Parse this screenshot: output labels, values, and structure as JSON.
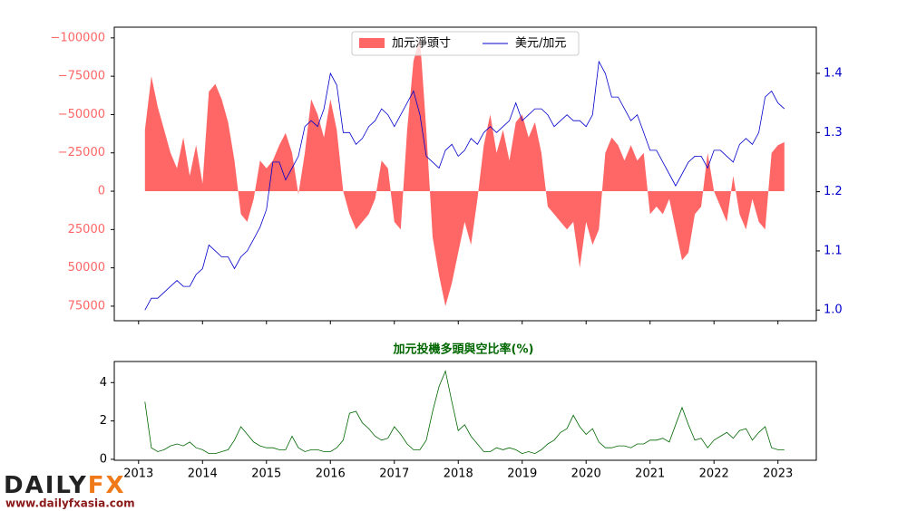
{
  "chart_data": [
    {
      "type": "area",
      "x": [
        2013.1,
        2013.2,
        2013.3,
        2013.4,
        2013.5,
        2013.6,
        2013.7,
        2013.8,
        2013.9,
        2014.0,
        2014.1,
        2014.2,
        2014.3,
        2014.4,
        2014.5,
        2014.6,
        2014.7,
        2014.8,
        2014.9,
        2015.0,
        2015.1,
        2015.2,
        2015.3,
        2015.4,
        2015.5,
        2015.6,
        2015.7,
        2015.8,
        2015.9,
        2016.0,
        2016.1,
        2016.2,
        2016.3,
        2016.4,
        2016.5,
        2016.6,
        2016.7,
        2016.8,
        2016.9,
        2017.0,
        2017.1,
        2017.2,
        2017.3,
        2017.4,
        2017.5,
        2017.6,
        2017.7,
        2017.8,
        2017.9,
        2018.0,
        2018.1,
        2018.2,
        2018.3,
        2018.4,
        2018.5,
        2018.6,
        2018.7,
        2018.8,
        2018.9,
        2019.0,
        2019.1,
        2019.2,
        2019.3,
        2019.4,
        2019.5,
        2019.6,
        2019.7,
        2019.8,
        2019.9,
        2020.0,
        2020.1,
        2020.2,
        2020.3,
        2020.4,
        2020.5,
        2020.6,
        2020.7,
        2020.8,
        2020.9,
        2021.0,
        2021.1,
        2021.2,
        2021.3,
        2021.4,
        2021.5,
        2021.6,
        2021.7,
        2021.8,
        2021.9,
        2022.0,
        2022.1,
        2022.2,
        2022.3,
        2022.4,
        2022.5,
        2022.6,
        2022.7,
        2022.8,
        2022.9,
        2023.0,
        2023.1
      ],
      "series": [
        {
          "name": "加元淨頭寸",
          "color": "#ff6666",
          "values": [
            -40000,
            -75000,
            -55000,
            -40000,
            -25000,
            -15000,
            -35000,
            -10000,
            -30000,
            -5000,
            -65000,
            -70000,
            -60000,
            -45000,
            -20000,
            15000,
            20000,
            5000,
            -20000,
            -15000,
            -20000,
            -30000,
            -38000,
            -25000,
            2000,
            -25000,
            -60000,
            -50000,
            -35000,
            -60000,
            -40000,
            0,
            15000,
            25000,
            20000,
            15000,
            5000,
            -20000,
            -15000,
            20000,
            25000,
            -40000,
            -85000,
            -100000,
            -40000,
            30000,
            55000,
            75000,
            60000,
            40000,
            20000,
            35000,
            5000,
            -30000,
            -50000,
            -25000,
            -40000,
            -20000,
            -45000,
            -50000,
            -35000,
            -45000,
            -25000,
            10000,
            15000,
            20000,
            25000,
            20000,
            50000,
            20000,
            35000,
            25000,
            -25000,
            -35000,
            -30000,
            -20000,
            -30000,
            -20000,
            -25000,
            15000,
            10000,
            15000,
            5000,
            25000,
            45000,
            40000,
            15000,
            10000,
            -25000,
            0,
            10000,
            20000,
            -10000,
            15000,
            25000,
            5000,
            20000,
            25000,
            -25000,
            -30000,
            -32000
          ]
        },
        {
          "name": "美元/加元",
          "color": "#0000cc",
          "axis": "y2",
          "values": [
            1.0,
            1.02,
            1.02,
            1.03,
            1.04,
            1.05,
            1.04,
            1.04,
            1.06,
            1.07,
            1.11,
            1.1,
            1.09,
            1.09,
            1.07,
            1.09,
            1.1,
            1.12,
            1.14,
            1.17,
            1.25,
            1.25,
            1.22,
            1.24,
            1.26,
            1.31,
            1.32,
            1.31,
            1.34,
            1.4,
            1.38,
            1.3,
            1.3,
            1.28,
            1.29,
            1.31,
            1.32,
            1.34,
            1.33,
            1.31,
            1.33,
            1.35,
            1.37,
            1.33,
            1.26,
            1.25,
            1.24,
            1.27,
            1.28,
            1.26,
            1.27,
            1.29,
            1.28,
            1.3,
            1.31,
            1.3,
            1.31,
            1.32,
            1.35,
            1.32,
            1.33,
            1.34,
            1.34,
            1.33,
            1.31,
            1.32,
            1.33,
            1.32,
            1.32,
            1.31,
            1.33,
            1.42,
            1.4,
            1.36,
            1.36,
            1.34,
            1.32,
            1.33,
            1.3,
            1.27,
            1.27,
            1.25,
            1.23,
            1.21,
            1.23,
            1.25,
            1.26,
            1.26,
            1.24,
            1.27,
            1.27,
            1.26,
            1.25,
            1.28,
            1.29,
            1.28,
            1.3,
            1.36,
            1.37,
            1.35,
            1.34
          ]
        }
      ],
      "xlim": [
        2012.62,
        2023.6
      ],
      "xticks": [
        2013,
        2014,
        2015,
        2016,
        2017,
        2018,
        2019,
        2020,
        2021,
        2022,
        2023
      ],
      "ylim": [
        84500,
        -107000
      ],
      "yticks": [
        {
          "value": -100000,
          "label": "−100000"
        },
        {
          "value": -75000,
          "label": "−75000"
        },
        {
          "value": -50000,
          "label": "−50000"
        },
        {
          "value": -25000,
          "label": "−25000"
        },
        0,
        25000,
        50000,
        75000
      ],
      "y2lim": [
        0.982,
        1.478
      ],
      "y2ticks": [
        {
          "value": 1.0,
          "label": "1.0"
        },
        1.1,
        1.2,
        1.3,
        1.4
      ],
      "legend": "upper center"
    },
    {
      "type": "line",
      "title": "加元投機多頭與空比率(%)",
      "color": "#006600",
      "x": [
        2013.1,
        2013.2,
        2013.3,
        2013.4,
        2013.5,
        2013.6,
        2013.7,
        2013.8,
        2013.9,
        2014.0,
        2014.1,
        2014.2,
        2014.3,
        2014.4,
        2014.5,
        2014.6,
        2014.7,
        2014.8,
        2014.9,
        2015.0,
        2015.1,
        2015.2,
        2015.3,
        2015.4,
        2015.5,
        2015.6,
        2015.7,
        2015.8,
        2015.9,
        2016.0,
        2016.1,
        2016.2,
        2016.3,
        2016.4,
        2016.5,
        2016.6,
        2016.7,
        2016.8,
        2016.9,
        2017.0,
        2017.1,
        2017.2,
        2017.3,
        2017.4,
        2017.5,
        2017.6,
        2017.7,
        2017.8,
        2017.9,
        2018.0,
        2018.1,
        2018.2,
        2018.3,
        2018.4,
        2018.5,
        2018.6,
        2018.7,
        2018.8,
        2018.9,
        2019.0,
        2019.1,
        2019.2,
        2019.3,
        2019.4,
        2019.5,
        2019.6,
        2019.7,
        2019.8,
        2019.9,
        2020.0,
        2020.1,
        2020.2,
        2020.3,
        2020.4,
        2020.5,
        2020.6,
        2020.7,
        2020.8,
        2020.9,
        2021.0,
        2021.1,
        2021.2,
        2021.3,
        2021.4,
        2021.5,
        2021.6,
        2021.7,
        2021.8,
        2021.9,
        2022.0,
        2022.1,
        2022.2,
        2022.3,
        2022.4,
        2022.5,
        2022.6,
        2022.7,
        2022.8,
        2022.9,
        2023.0,
        2023.1
      ],
      "values": [
        3.0,
        0.6,
        0.4,
        0.5,
        0.7,
        0.8,
        0.7,
        0.9,
        0.6,
        0.5,
        0.3,
        0.3,
        0.4,
        0.5,
        1.0,
        1.7,
        1.3,
        0.9,
        0.7,
        0.6,
        0.6,
        0.5,
        0.5,
        1.2,
        0.6,
        0.4,
        0.5,
        0.5,
        0.4,
        0.4,
        0.6,
        1.0,
        2.4,
        2.5,
        1.9,
        1.6,
        1.2,
        1.0,
        1.1,
        1.7,
        1.3,
        0.8,
        0.5,
        0.5,
        1.0,
        2.5,
        3.8,
        4.6,
        3.0,
        1.5,
        1.8,
        1.2,
        0.8,
        0.4,
        0.4,
        0.6,
        0.5,
        0.6,
        0.5,
        0.3,
        0.4,
        0.3,
        0.5,
        0.8,
        1.0,
        1.4,
        1.6,
        2.3,
        1.7,
        1.3,
        1.6,
        0.9,
        0.6,
        0.6,
        0.7,
        0.7,
        0.6,
        0.8,
        0.8,
        1.0,
        1.0,
        1.1,
        0.9,
        1.8,
        2.7,
        1.8,
        1.0,
        1.1,
        0.6,
        1.0,
        1.2,
        1.4,
        1.1,
        1.5,
        1.6,
        1.0,
        1.4,
        1.7,
        0.6,
        0.5,
        0.5
      ],
      "xlim": [
        2012.62,
        2023.6
      ],
      "xticks": [
        2013,
        2014,
        2015,
        2016,
        2017,
        2018,
        2019,
        2020,
        2021,
        2022,
        2023
      ],
      "ylim": [
        -0.05,
        5.1
      ],
      "yticks": [
        0,
        2,
        4
      ]
    }
  ],
  "logo": {
    "name1": "DAILY",
    "name2": "FX",
    "url": "www.dailyfxasia.com"
  }
}
